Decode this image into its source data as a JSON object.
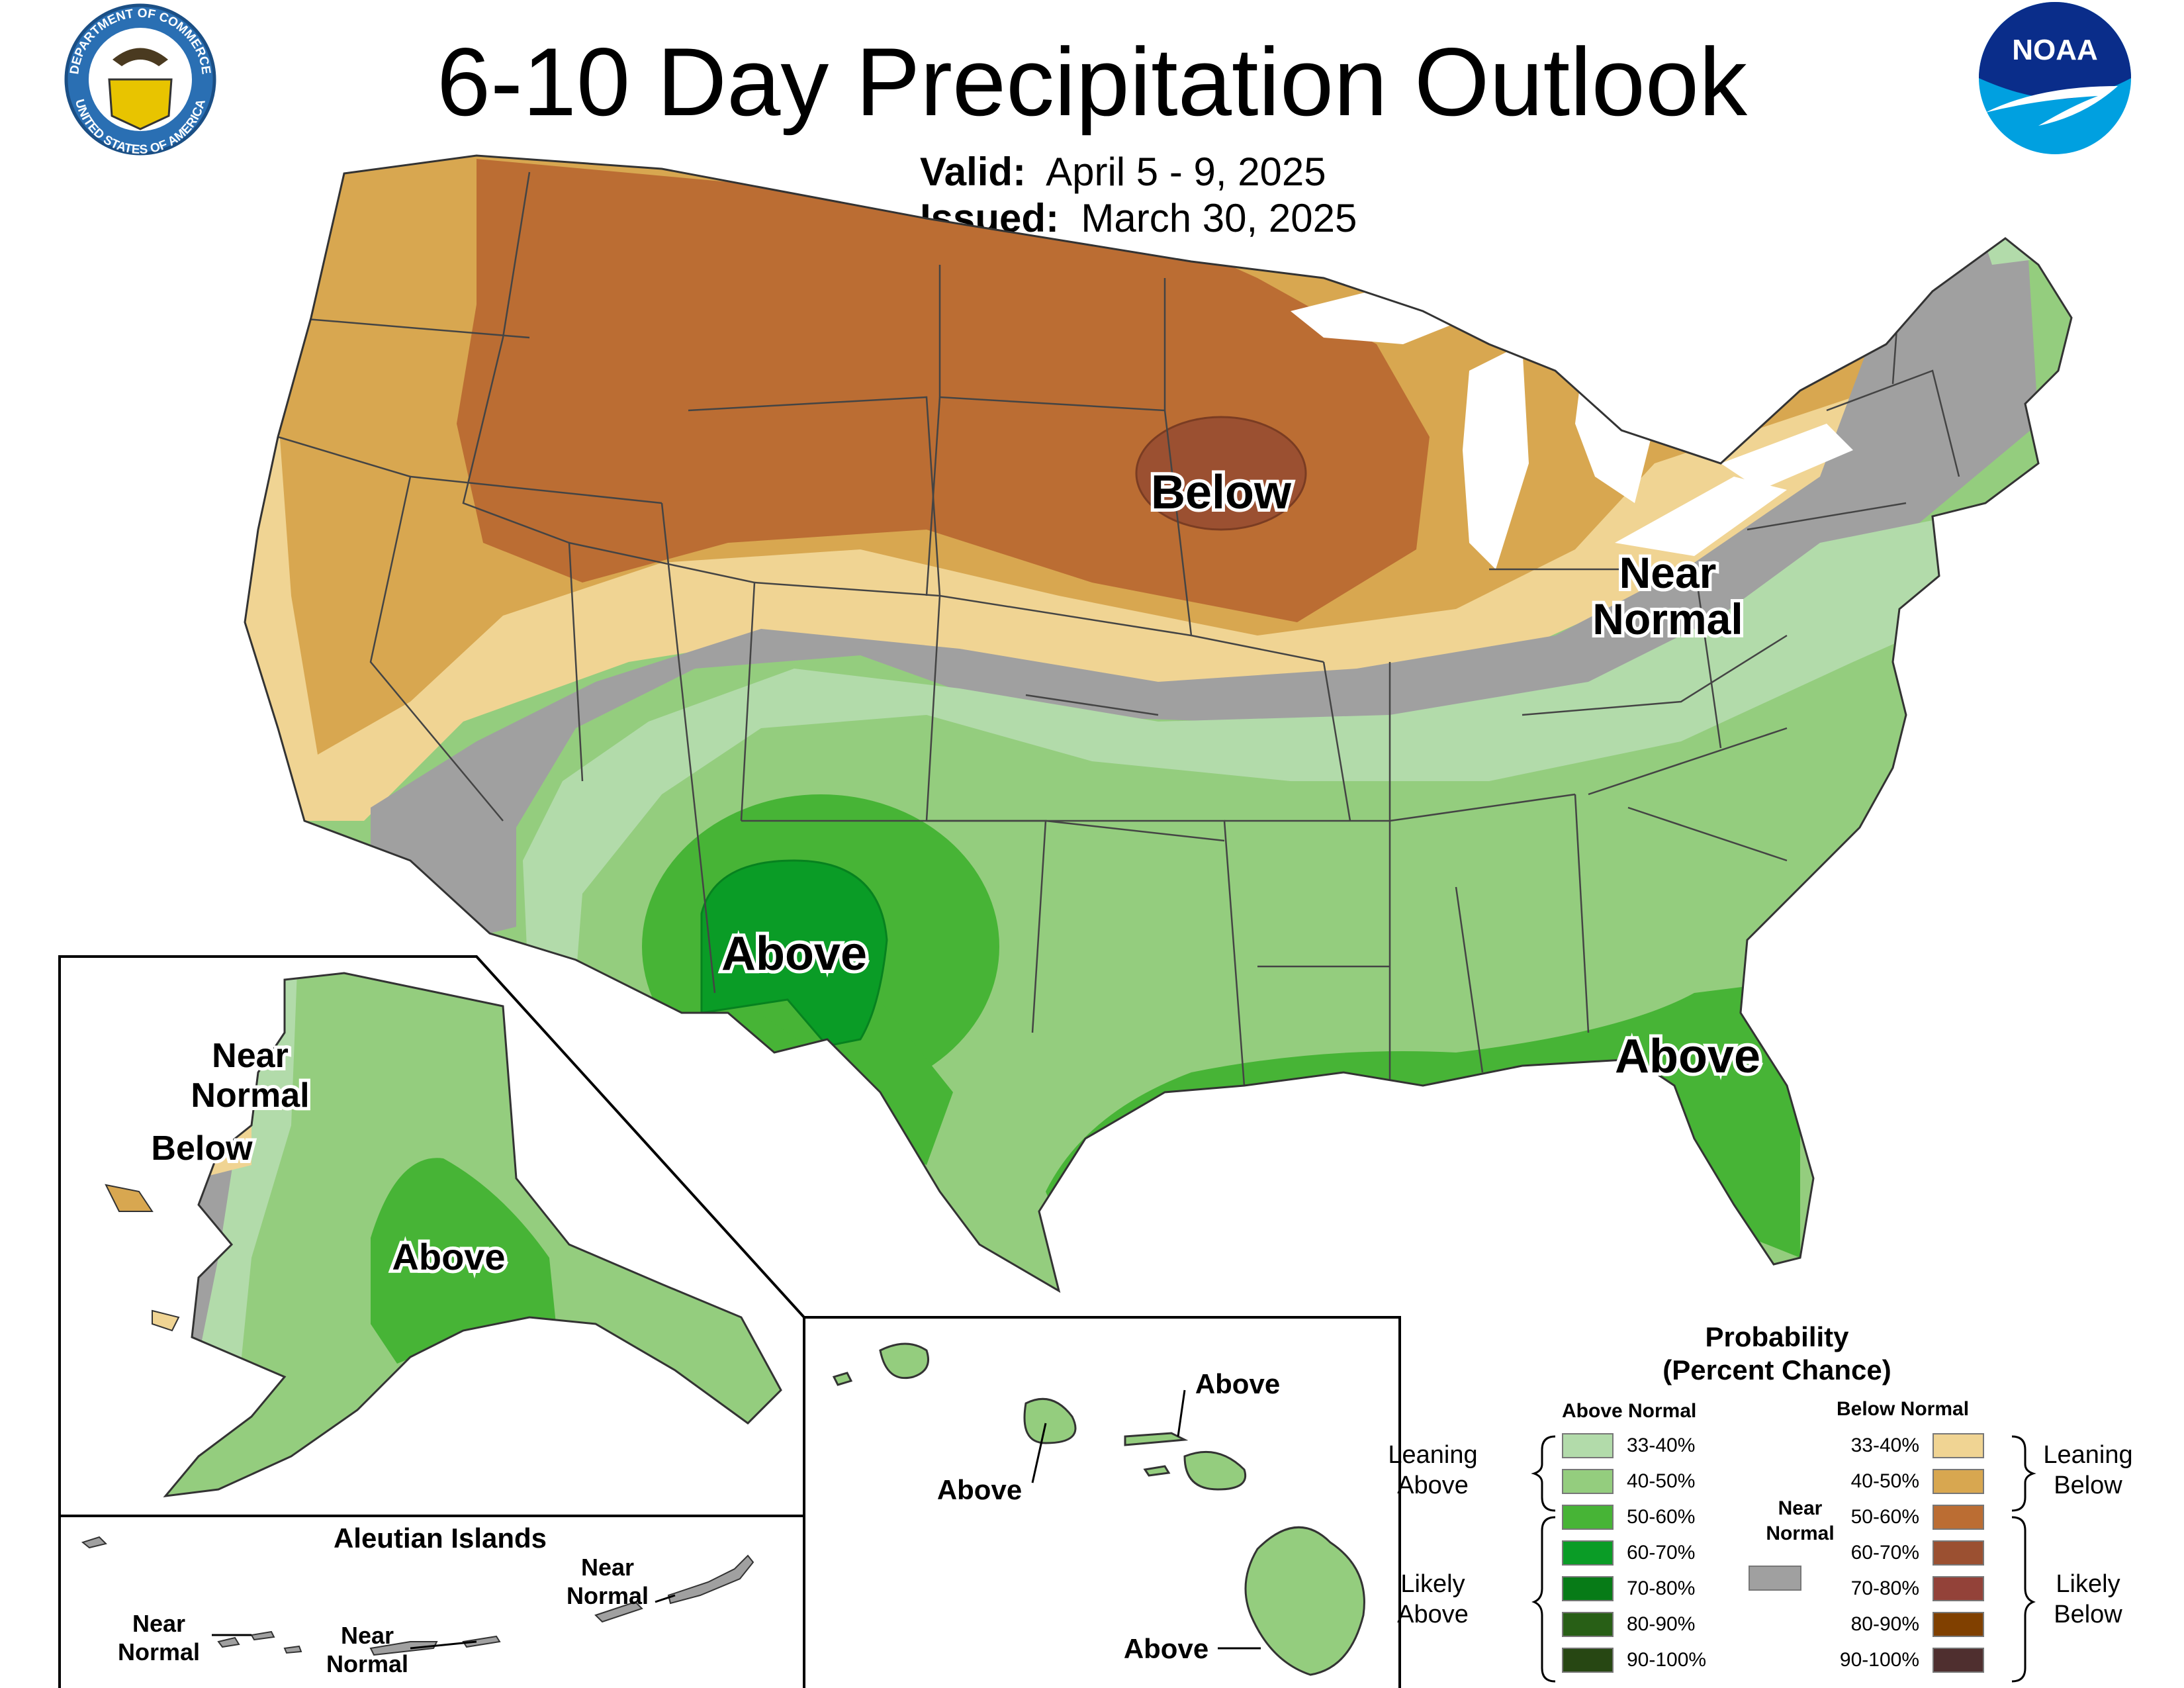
{
  "header": {
    "title": "6-10 Day Precipitation Outlook",
    "valid_label": "Valid:",
    "valid_value": "April 5 - 9, 2025",
    "issued_label": "Issued:",
    "issued_value": "March 30, 2025",
    "doc_seal_top_text": "DEPARTMENT OF COMMERCE",
    "doc_seal_bottom_text": "UNITED STATES OF AMERICA",
    "noaa_logo_text": "NOAA"
  },
  "map_labels": {
    "conus_below": "Below",
    "conus_near_normal_1": "Near",
    "conus_near_normal_2": "Normal",
    "conus_above_sw": "Above",
    "conus_above_se": "Above",
    "ak_near_normal_1": "Near",
    "ak_near_normal_2": "Normal",
    "ak_below": "Below",
    "ak_above": "Above"
  },
  "aleutian": {
    "title": "Aleutian Islands",
    "near_normal_1": "Near",
    "near_normal_2": "Normal"
  },
  "hawaii": {
    "above": "Above"
  },
  "legend": {
    "title_1": "Probability",
    "title_2": "(Percent Chance)",
    "above_header": "Above Normal",
    "below_header": "Below Normal",
    "leaning_above_1": "Leaning",
    "leaning_above_2": "Above",
    "likely_above_1": "Likely",
    "likely_above_2": "Above",
    "leaning_below_1": "Leaning",
    "leaning_below_2": "Below",
    "likely_below_1": "Likely",
    "likely_below_2": "Below",
    "near_normal_1": "Near",
    "near_normal_2": "Normal",
    "above_items": [
      {
        "range": "33-40%",
        "color": "#b2dbaa"
      },
      {
        "range": "40-50%",
        "color": "#94cd7e"
      },
      {
        "range": "50-60%",
        "color": "#47b436"
      },
      {
        "range": "60-70%",
        "color": "#0a9c26"
      },
      {
        "range": "70-80%",
        "color": "#077b17"
      },
      {
        "range": "80-90%",
        "color": "#285f16"
      },
      {
        "range": "90-100%",
        "color": "#274713"
      }
    ],
    "below_items": [
      {
        "range": "33-40%",
        "color": "#f0d493"
      },
      {
        "range": "40-50%",
        "color": "#d8a750"
      },
      {
        "range": "50-60%",
        "color": "#bb6d33"
      },
      {
        "range": "60-70%",
        "color": "#9b5031"
      },
      {
        "range": "70-80%",
        "color": "#934239"
      },
      {
        "range": "80-90%",
        "color": "#804000"
      },
      {
        "range": "90-100%",
        "color": "#4f2f2f"
      }
    ],
    "near_normal_color": "#a0a0a0"
  }
}
